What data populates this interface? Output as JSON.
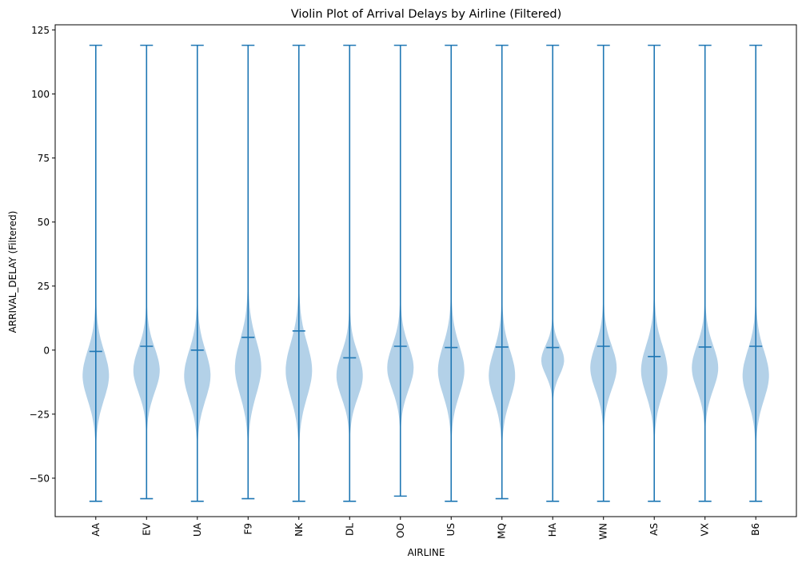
{
  "chart_data": {
    "type": "violin",
    "title": "Violin Plot of Arrival Delays by Airline (Filtered)",
    "xlabel": "AIRLINE",
    "ylabel": "ARRIVAL_DELAY (Filtered)",
    "ylim": [
      -65,
      127
    ],
    "yticks": [
      -50,
      -25,
      0,
      25,
      50,
      75,
      100,
      125
    ],
    "ytick_labels": [
      "−50",
      "−25",
      "0",
      "25",
      "50",
      "75",
      "100",
      "125"
    ],
    "grid": false,
    "legend": "none",
    "colors": {
      "body": "#b3d1e8",
      "line": "#1f77b4"
    },
    "categories": [
      "AA",
      "EV",
      "UA",
      "F9",
      "NK",
      "DL",
      "OO",
      "US",
      "MQ",
      "HA",
      "WN",
      "AS",
      "VX",
      "B6"
    ],
    "violins": [
      {
        "category": "AA",
        "min": -59,
        "max": 119,
        "mean": -0.5,
        "peak": -10,
        "spread": 10,
        "width": 0.52
      },
      {
        "category": "EV",
        "min": -58,
        "max": 119,
        "mean": 1.5,
        "peak": -8,
        "spread": 9,
        "width": 0.52
      },
      {
        "category": "UA",
        "min": -59,
        "max": 119,
        "mean": 0,
        "peak": -10,
        "spread": 10,
        "width": 0.52
      },
      {
        "category": "F9",
        "min": -58,
        "max": 119,
        "mean": 5,
        "peak": -7,
        "spread": 11,
        "width": 0.52
      },
      {
        "category": "NK",
        "min": -59,
        "max": 119,
        "mean": 7.5,
        "peak": -8,
        "spread": 11,
        "width": 0.52
      },
      {
        "category": "DL",
        "min": -59,
        "max": 119,
        "mean": -3,
        "peak": -10,
        "spread": 9,
        "width": 0.52
      },
      {
        "category": "OO",
        "min": -57,
        "max": 119,
        "mean": 1.5,
        "peak": -7,
        "spread": 9,
        "width": 0.52
      },
      {
        "category": "US",
        "min": -59,
        "max": 119,
        "mean": 1,
        "peak": -8,
        "spread": 10,
        "width": 0.52
      },
      {
        "category": "MQ",
        "min": -58,
        "max": 119,
        "mean": 1.2,
        "peak": -10,
        "spread": 10,
        "width": 0.52
      },
      {
        "category": "HA",
        "min": -59,
        "max": 119,
        "mean": 1,
        "peak": -4,
        "spread": 6,
        "width": 0.45
      },
      {
        "category": "WN",
        "min": -59,
        "max": 119,
        "mean": 1.5,
        "peak": -7,
        "spread": 9,
        "width": 0.52
      },
      {
        "category": "AS",
        "min": -59,
        "max": 119,
        "mean": -2.5,
        "peak": -8,
        "spread": 10,
        "width": 0.52
      },
      {
        "category": "VX",
        "min": -59,
        "max": 119,
        "mean": 1.2,
        "peak": -7,
        "spread": 9,
        "width": 0.52
      },
      {
        "category": "B6",
        "min": -59,
        "max": 119,
        "mean": 1.5,
        "peak": -10,
        "spread": 10,
        "width": 0.52
      }
    ]
  }
}
